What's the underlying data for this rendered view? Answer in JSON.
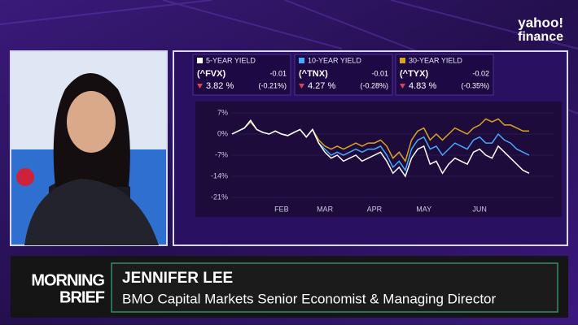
{
  "logo": {
    "brand": "yahoo!",
    "product": "finance"
  },
  "chart_data": {
    "type": "line",
    "categories": [
      null,
      null,
      null,
      null,
      null,
      null,
      null,
      null,
      "FEB",
      null,
      null,
      null,
      null,
      null,
      null,
      "MAR",
      null,
      null,
      null,
      null,
      null,
      null,
      null,
      "APR",
      null,
      null,
      null,
      null,
      null,
      null,
      null,
      "MAY",
      null,
      null,
      null,
      null,
      null,
      null,
      null,
      null,
      "JUN",
      null,
      null,
      null,
      null,
      null,
      null,
      null,
      null
    ],
    "ylim": [
      -24,
      9
    ],
    "yticks": [
      {
        "value": 7,
        "label": "7%"
      },
      {
        "value": 0,
        "label": "0%"
      },
      {
        "value": -7,
        "label": "-7%"
      },
      {
        "value": -14,
        "label": "-14%"
      },
      {
        "value": -21,
        "label": "-21%"
      }
    ],
    "grid": true,
    "series": [
      {
        "name": "5-YEAR YIELD",
        "symbol": "(^FVX)",
        "change": "-0.01",
        "price": "3.82 %",
        "change_pct": "(-0.21%)",
        "color": "#ffffff",
        "values": [
          0,
          1,
          2,
          4.5,
          1.5,
          0.5,
          0,
          1,
          0,
          -0.5,
          0.5,
          1.5,
          -1,
          1.5,
          -3,
          -6,
          -8,
          -7,
          -9,
          -8,
          -7,
          -9,
          -8,
          -7,
          -6,
          -9,
          -13,
          -11,
          -14,
          -8,
          -5,
          -4,
          -10,
          -9,
          -13,
          -10,
          -8,
          -9,
          -10,
          -6,
          -5,
          -7,
          -8,
          -4,
          -6,
          -8,
          -10,
          -12,
          -13
        ]
      },
      {
        "name": "10-YEAR YIELD",
        "symbol": "(^TNX)",
        "change": "-0.01",
        "price": "4.27 %",
        "change_pct": "(-0.28%)",
        "color": "#4aa8ff",
        "values": [
          0,
          1,
          2,
          4.5,
          1.5,
          0.5,
          0,
          1,
          0,
          -0.5,
          0.5,
          1.5,
          -1,
          1.5,
          -3,
          -5,
          -7,
          -6,
          -7,
          -6,
          -5,
          -6,
          -5,
          -5,
          -4,
          -7,
          -11,
          -9,
          -12,
          -5,
          -2,
          -1,
          -5,
          -4,
          -7,
          -5,
          -3,
          -4,
          -5,
          -2,
          -1,
          -3,
          -3,
          0,
          -2,
          -3,
          -5,
          -6,
          -7
        ]
      },
      {
        "name": "30-YEAR YIELD",
        "symbol": "(^TYX)",
        "change": "-0.02",
        "price": "4.83 %",
        "change_pct": "(-0.35%)",
        "color": "#d9a520",
        "values": [
          0,
          1,
          2,
          4,
          1.5,
          0.5,
          0,
          1,
          0,
          -0.5,
          0.5,
          1.5,
          -1,
          1.5,
          -2,
          -4,
          -5,
          -4,
          -5,
          -4,
          -3,
          -4,
          -3,
          -3,
          -2,
          -4,
          -8,
          -6,
          -9,
          -2,
          1,
          2,
          -2,
          0,
          -2,
          0,
          2,
          1,
          0,
          2,
          3,
          5,
          4,
          5,
          3,
          3,
          2,
          1,
          1
        ]
      }
    ]
  },
  "lower_third": {
    "show_line1": "MORNING",
    "show_line2": "BRIEF",
    "name": "JENNIFER LEE",
    "title": "BMO Capital Markets Senior Economist & Managing Director"
  }
}
